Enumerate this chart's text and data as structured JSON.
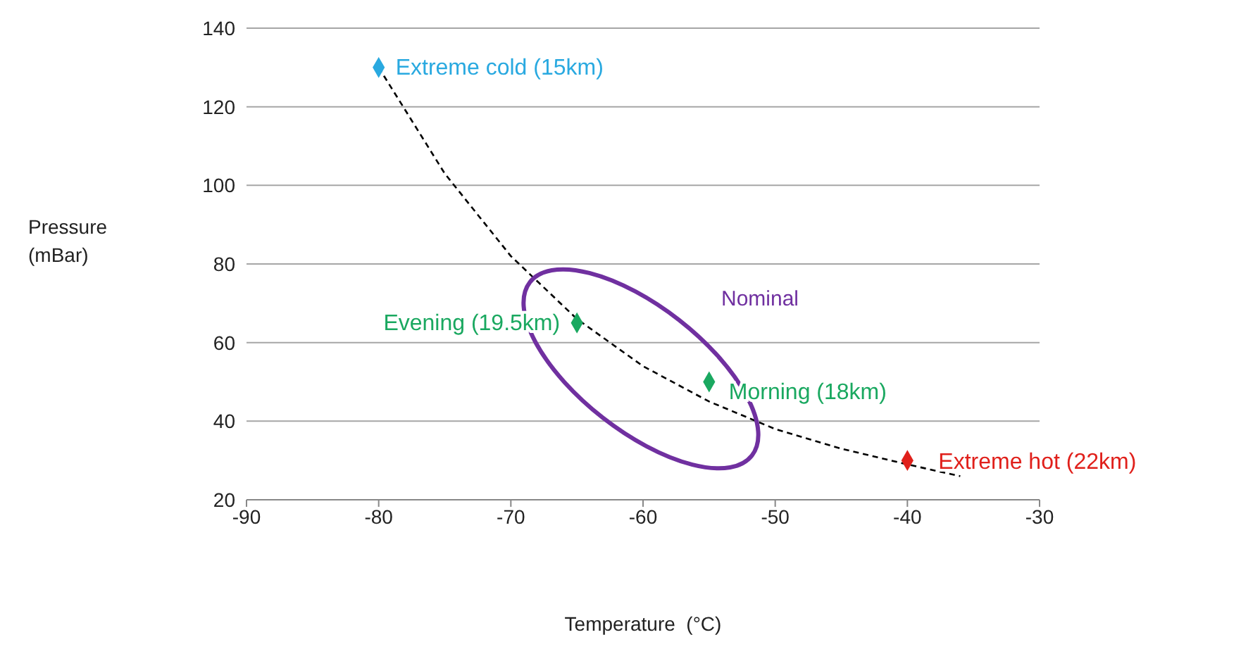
{
  "chart_data": {
    "type": "scatter",
    "xlabel": "Temperature  (°C)",
    "ylabel": "Pressure (mBar)",
    "xlim": [
      -90,
      -30
    ],
    "xticks": [
      -90,
      -80,
      -70,
      -60,
      -50,
      -40,
      -30
    ],
    "ylim": [
      20,
      140
    ],
    "yticks": [
      20,
      40,
      60,
      80,
      100,
      120,
      140
    ],
    "grid": "y",
    "legend": false,
    "marker": "diamond",
    "series": [
      {
        "type": "line",
        "x": [
          -80,
          -75,
          -70,
          -65,
          -60,
          -55,
          -50,
          -45,
          -40,
          -36
        ],
        "values": [
          130,
          103,
          82,
          66,
          54,
          45,
          38,
          33,
          29,
          26
        ],
        "color": "#000000",
        "line_style": "dashed",
        "marker": "none"
      },
      {
        "name": "Extreme cold (15km)",
        "x": [
          -80
        ],
        "values": [
          130
        ],
        "color": "#29a9e0"
      },
      {
        "name": "Evening (19.5km)",
        "x": [
          -65
        ],
        "values": [
          65
        ],
        "color": "#1aa860"
      },
      {
        "name": "Morning (18km)",
        "x": [
          -55
        ],
        "values": [
          50
        ],
        "color": "#1aa860"
      },
      {
        "name": "Extreme hot (22km)",
        "x": [
          -40
        ],
        "values": [
          30
        ],
        "color": "#e0201b"
      }
    ],
    "annotations": [
      "Nominal"
    ]
  }
}
